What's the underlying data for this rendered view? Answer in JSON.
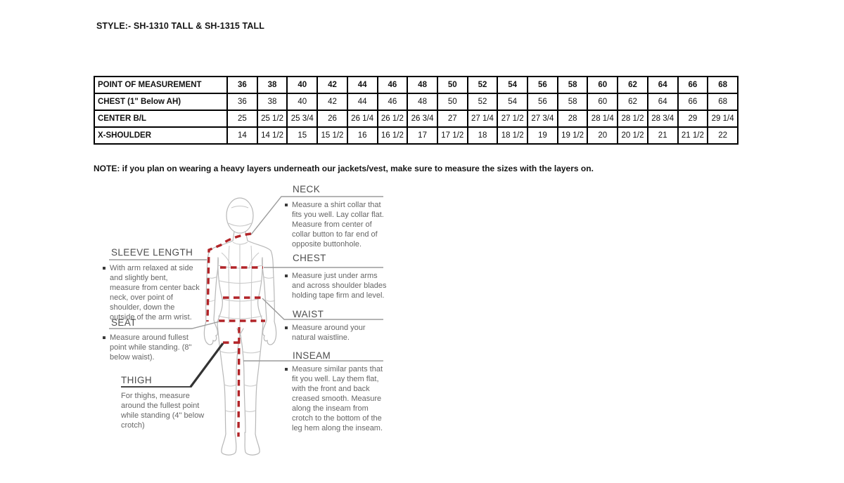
{
  "page": {
    "style_title": "STYLE:- SH-1310 TALL & SH-1315 TALL",
    "note": "NOTE: if you plan on wearing a heavy layers underneath our jackets/vest, make sure to measure the sizes with the layers on."
  },
  "size_table": {
    "header_label": "POINT OF MEASUREMENT",
    "sizes": [
      "36",
      "38",
      "40",
      "42",
      "44",
      "46",
      "48",
      "50",
      "52",
      "54",
      "56",
      "58",
      "60",
      "62",
      "64",
      "66",
      "68"
    ],
    "rows": [
      {
        "label": "CHEST (1\" Below AH)",
        "values": [
          "36",
          "38",
          "40",
          "42",
          "44",
          "46",
          "48",
          "50",
          "52",
          "54",
          "56",
          "58",
          "60",
          "62",
          "64",
          "66",
          "68"
        ]
      },
      {
        "label": "CENTER B/L",
        "values": [
          "25",
          "25 1/2",
          "25 3/4",
          "26",
          "26 1/4",
          "26 1/2",
          "26 3/4",
          "27",
          "27 1/4",
          "27 1/2",
          "27 3/4",
          "28",
          "28 1/4",
          "28 1/2",
          "28 3/4",
          "29",
          "29 1/4"
        ]
      },
      {
        "label": "X-SHOULDER",
        "values": [
          "14",
          "14 1/2",
          "15",
          "15 1/2",
          "16",
          "16 1/2",
          "17",
          "17 1/2",
          "18",
          "18 1/2",
          "19",
          "19 1/2",
          "20",
          "20 1/2",
          "21",
          "21 1/2",
          "22"
        ]
      }
    ]
  },
  "measurement_guide": {
    "sections": {
      "neck": {
        "title": "NECK",
        "text": "Measure a shirt collar that fits you well. Lay collar flat. Measure from center of collar button to far end of opposite buttonhole."
      },
      "sleeve_length": {
        "title": "SLEEVE LENGTH",
        "text": "With arm relaxed at side and slightly bent, measure from center back neck, over point of shoulder, down the outside of the arm wrist."
      },
      "chest": {
        "title": "CHEST",
        "text": "Measure just under arms and across shoulder blades holding tape firm and level."
      },
      "waist": {
        "title": "WAIST",
        "text": "Measure around your natural waistline."
      },
      "seat": {
        "title": "SEAT",
        "text": "Measure around fullest point while standing. (8\" below waist)."
      },
      "inseam": {
        "title": "INSEAM",
        "text": "Measure similar pants that fit you well. Lay them flat, with the front and back creased smooth. Measure along the inseam from crotch to the bottom of the leg hem along the inseam."
      },
      "thigh": {
        "title": "THIGH",
        "text": "For thighs, measure around the fullest point while standing (4\" below crotch)"
      }
    },
    "colors": {
      "measure_line": "#b22428",
      "figure_outline": "#b8b8b8",
      "leader_line": "#9b9b9b",
      "thigh_pointer": "#333333"
    }
  }
}
